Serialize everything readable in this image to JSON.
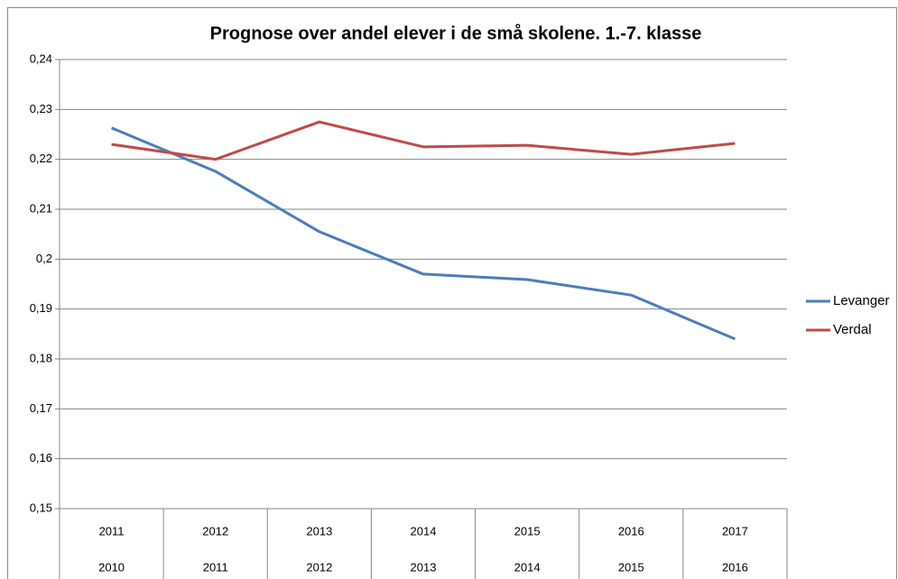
{
  "chart_data": {
    "type": "line",
    "title": "Prognose over andel elever i de små skolene. 1.-7. klasse",
    "categories": [
      [
        "2011",
        "2010"
      ],
      [
        "2012",
        "2011"
      ],
      [
        "2013",
        "2012"
      ],
      [
        "2014",
        "2013"
      ],
      [
        "2015",
        "2014"
      ],
      [
        "2016",
        "2015"
      ],
      [
        "2017",
        "2016"
      ]
    ],
    "series": [
      {
        "name": "Levanger",
        "color": "#4a7ebb",
        "values": [
          0.2263,
          0.2176,
          0.2055,
          0.197,
          0.1959,
          0.1928,
          0.184
        ]
      },
      {
        "name": "Verdal",
        "color": "#be4b48",
        "values": [
          0.223,
          0.22,
          0.2275,
          0.2225,
          0.2228,
          0.221,
          0.2232
        ]
      }
    ],
    "ylim": [
      0.15,
      0.24
    ],
    "yticks": [
      {
        "value": 0.15,
        "label": "0,15"
      },
      {
        "value": 0.16,
        "label": "0,16"
      },
      {
        "value": 0.17,
        "label": "0,17"
      },
      {
        "value": 0.18,
        "label": "0,18"
      },
      {
        "value": 0.19,
        "label": "0,19"
      },
      {
        "value": 0.2,
        "label": "0,2"
      },
      {
        "value": 0.21,
        "label": "0,21"
      },
      {
        "value": 0.22,
        "label": "0,22"
      },
      {
        "value": 0.23,
        "label": "0,23"
      },
      {
        "value": 0.24,
        "label": "0,24"
      }
    ],
    "grid": true,
    "legend": "right"
  }
}
